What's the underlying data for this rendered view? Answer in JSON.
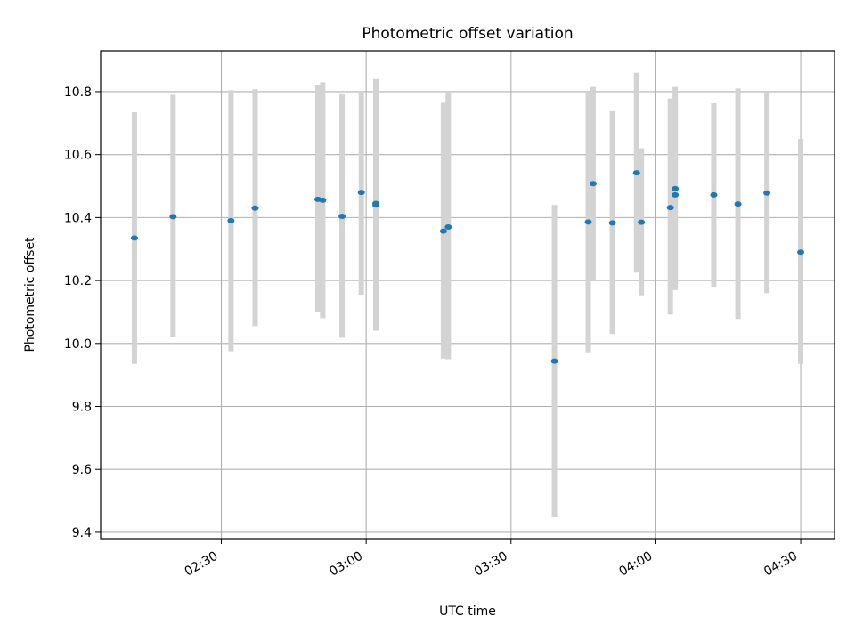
{
  "chart_data": {
    "type": "scatter",
    "title": "Photometric offset variation",
    "xlabel": "UTC time",
    "ylabel": "Photometric offset",
    "x_ticks": [
      "02:30",
      "03:00",
      "03:30",
      "04:00",
      "04:30"
    ],
    "y_ticks": [
      "9.4",
      "9.6",
      "9.8",
      "10.0",
      "10.2",
      "10.4",
      "10.6",
      "10.8"
    ],
    "xlim": [
      "02:05",
      "04:37"
    ],
    "ylim": [
      9.38,
      10.93
    ],
    "grid": true,
    "colors": {
      "points": "#1f77b4",
      "errorbars": "#d3d3d3",
      "grid": "#b0b0b0"
    },
    "points": [
      {
        "t": "02:12",
        "y": 10.335,
        "lo": 9.935,
        "hi": 10.735
      },
      {
        "t": "02:20",
        "y": 10.403,
        "lo": 10.022,
        "hi": 10.79
      },
      {
        "t": "02:32",
        "y": 10.39,
        "lo": 9.975,
        "hi": 10.805
      },
      {
        "t": "02:37",
        "y": 10.43,
        "lo": 10.055,
        "hi": 10.808
      },
      {
        "t": "02:50",
        "y": 10.458,
        "lo": 10.1,
        "hi": 10.82
      },
      {
        "t": "02:51",
        "y": 10.455,
        "lo": 10.08,
        "hi": 10.83
      },
      {
        "t": "02:55",
        "y": 10.404,
        "lo": 10.018,
        "hi": 10.792
      },
      {
        "t": "02:59",
        "y": 10.48,
        "lo": 10.155,
        "hi": 10.8
      },
      {
        "t": "03:02",
        "y": 10.44,
        "lo": 10.04,
        "hi": 10.838
      },
      {
        "t": "03:02",
        "y": 10.445,
        "lo": 10.05,
        "hi": 10.84
      },
      {
        "t": "03:16",
        "y": 10.357,
        "lo": 9.952,
        "hi": 10.765
      },
      {
        "t": "03:17",
        "y": 10.37,
        "lo": 9.95,
        "hi": 10.795
      },
      {
        "t": "03:39",
        "y": 9.944,
        "lo": 9.448,
        "hi": 10.44
      },
      {
        "t": "03:46",
        "y": 10.386,
        "lo": 9.972,
        "hi": 10.8
      },
      {
        "t": "03:47",
        "y": 10.508,
        "lo": 10.2,
        "hi": 10.815
      },
      {
        "t": "03:51",
        "y": 10.383,
        "lo": 10.03,
        "hi": 10.738
      },
      {
        "t": "03:56",
        "y": 10.542,
        "lo": 10.225,
        "hi": 10.86
      },
      {
        "t": "03:57",
        "y": 10.385,
        "lo": 10.153,
        "hi": 10.62
      },
      {
        "t": "04:03",
        "y": 10.432,
        "lo": 10.092,
        "hi": 10.778
      },
      {
        "t": "04:04",
        "y": 10.472,
        "lo": 10.17,
        "hi": 10.778
      },
      {
        "t": "04:04",
        "y": 10.492,
        "lo": 10.175,
        "hi": 10.815
      },
      {
        "t": "04:12",
        "y": 10.472,
        "lo": 10.18,
        "hi": 10.763
      },
      {
        "t": "04:17",
        "y": 10.443,
        "lo": 10.078,
        "hi": 10.81
      },
      {
        "t": "04:23",
        "y": 10.478,
        "lo": 10.16,
        "hi": 10.8
      },
      {
        "t": "04:30",
        "y": 10.29,
        "lo": 9.935,
        "hi": 10.65
      }
    ]
  }
}
